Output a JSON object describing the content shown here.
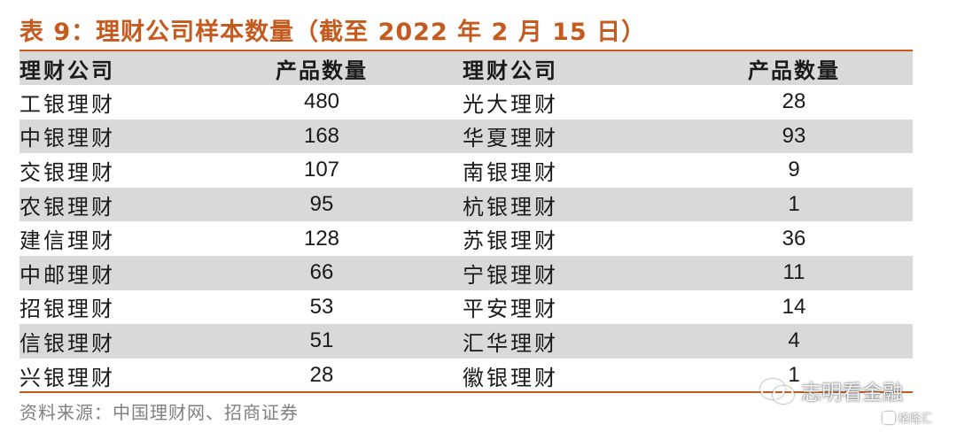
{
  "title": "表 9：理财公司样本数量（截至 2022 年 2 月 15 日）",
  "headers": [
    "理财公司",
    "产品数量",
    "理财公司",
    "产品数量"
  ],
  "rows": [
    {
      "name_left": "工银理财",
      "count_left": "480",
      "name_right": "光大理财",
      "count_right": "28"
    },
    {
      "name_left": "中银理财",
      "count_left": "168",
      "name_right": "华夏理财",
      "count_right": "93"
    },
    {
      "name_left": "交银理财",
      "count_left": "107",
      "name_right": "南银理财",
      "count_right": "9"
    },
    {
      "name_left": "农银理财",
      "count_left": "95",
      "name_right": "杭银理财",
      "count_right": "1"
    },
    {
      "name_left": "建信理财",
      "count_left": "128",
      "name_right": "苏银理财",
      "count_right": "36"
    },
    {
      "name_left": "中邮理财",
      "count_left": "66",
      "name_right": "宁银理财",
      "count_right": "11"
    },
    {
      "name_left": "招银理财",
      "count_left": "53",
      "name_right": "平安理财",
      "count_right": "14"
    },
    {
      "name_left": "信银理财",
      "count_left": "51",
      "name_right": "汇华理财",
      "count_right": "4"
    },
    {
      "name_left": "兴银理财",
      "count_left": "28",
      "name_right": "徽银理财",
      "count_right": "1"
    }
  ],
  "source": "资料来源：中国理财网、招商证券",
  "watermark": {
    "icon": "wechat-icon",
    "text": "志明看金融"
  },
  "logo": {
    "icon": "gelonghui-icon",
    "text": "格隆汇"
  },
  "colors": {
    "accent": "#c55a1e",
    "stripe": "#d9d9d9",
    "source_text": "#808080"
  }
}
